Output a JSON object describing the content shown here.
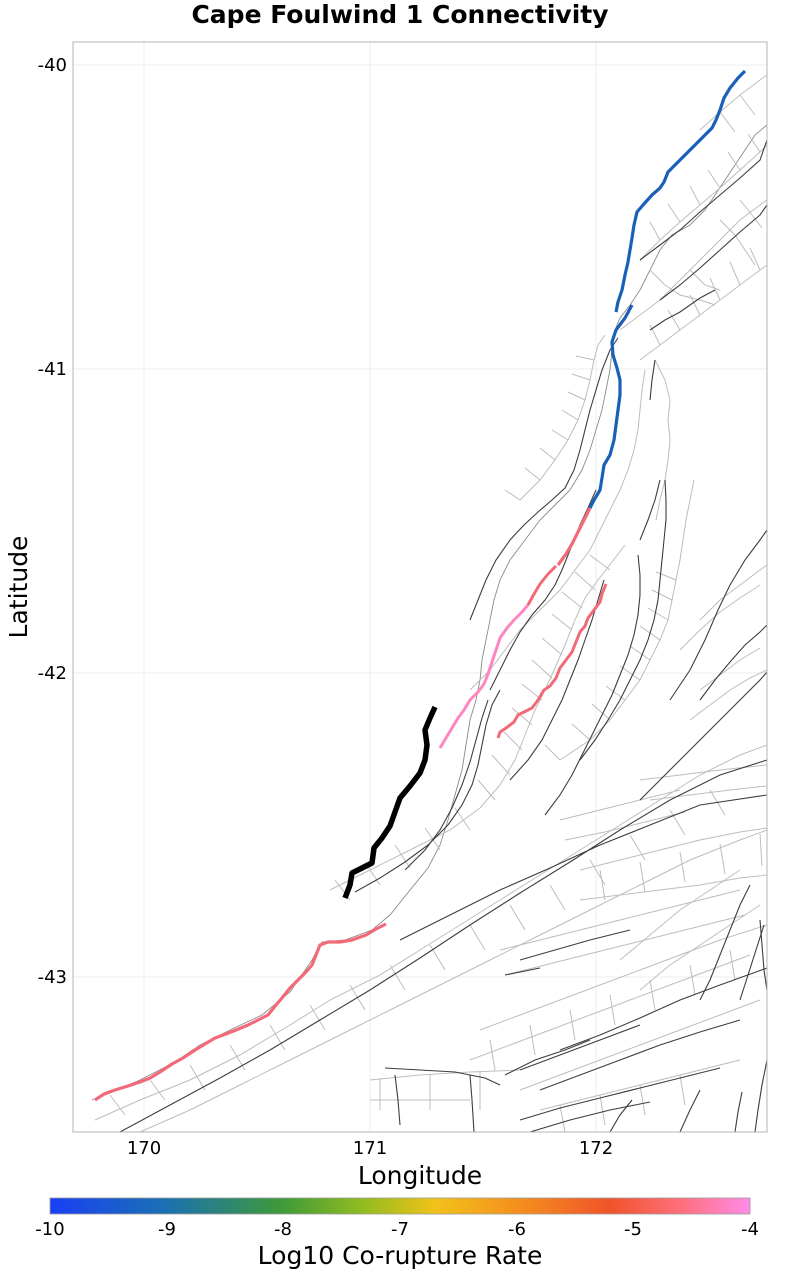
{
  "title": "Cape Foulwind 1 Connectivity",
  "axes": {
    "xlabel": "Longitude",
    "ylabel": "Latitude",
    "xticks": [
      "170",
      "171",
      "172"
    ],
    "yticks": [
      "-40",
      "-41",
      "-42",
      "-43"
    ]
  },
  "colorbar": {
    "label": "Log10 Co-rupture Rate",
    "ticks": [
      "-10",
      "-9",
      "-8",
      "-7",
      "-6",
      "-5",
      "-4"
    ],
    "colors": [
      "#1a3ff5",
      "#1b6fb5",
      "#3d9a3a",
      "#6bb524",
      "#f2c21a",
      "#f58a1f",
      "#f0532a",
      "#ff6f7a",
      "#ff8ce8"
    ]
  },
  "legend_colors": {
    "source_fault": "#000000",
    "blue_rupture": "#1a5fb8",
    "red_rupture": "#f26a78",
    "pink_rupture": "#ff84c2"
  }
}
